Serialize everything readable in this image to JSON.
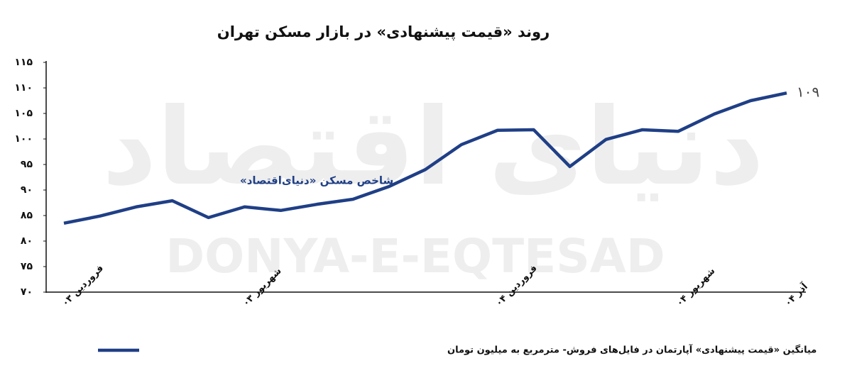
{
  "chart_data": {
    "type": "line",
    "title": "روند «قیمت پیشنهادی» در بازار مسکن تهران",
    "annotation": "شاخص مسکن «دنیای‌اقتصاد»",
    "watermark": "DONYA-E-EQTESAD",
    "watermark_fa": "دنیای اقتصاد",
    "categories": [
      "فروردین ۰۳",
      null,
      null,
      null,
      null,
      "شهریور ۰۳",
      null,
      null,
      null,
      null,
      null,
      null,
      "فروردین ۰۴",
      null,
      null,
      null,
      null,
      "شهریور ۰۴",
      null,
      null,
      "آذر ۰۴"
    ],
    "series": [
      {
        "name": "میانگین «قیمت پیشنهادی» آپارتمان در فایل‌های فروش- مترمربع به میلیون تومان",
        "color": "#1f3f86",
        "values": [
          83.5,
          84.9,
          86.7,
          87.9,
          84.6,
          86.7,
          86,
          87.2,
          88.2,
          90.7,
          94,
          98.9,
          101.7,
          101.8,
          94.6,
          99.9,
          101.8,
          101.5,
          104.9,
          107.5,
          109
        ],
        "value_labels": [
          null,
          null,
          null,
          null,
          null,
          null,
          null,
          null,
          null,
          null,
          null,
          null,
          null,
          null,
          null,
          null,
          null,
          null,
          null,
          null,
          "۱۰۹"
        ]
      }
    ],
    "ylim": [
      70,
      115
    ],
    "yticks": [
      {
        "value": 70,
        "label": "۷۰"
      },
      {
        "value": 75,
        "label": "۷۵"
      },
      {
        "value": 80,
        "label": "۸۰"
      },
      {
        "value": 85,
        "label": "۸۵"
      },
      {
        "value": 90,
        "label": "۹۰"
      },
      {
        "value": 95,
        "label": "۹۵"
      },
      {
        "value": 100,
        "label": "۱۰۰"
      },
      {
        "value": 105,
        "label": "۱۰۵"
      },
      {
        "value": 110,
        "label": "۱۱۰"
      },
      {
        "value": 115,
        "label": "۱۱۵"
      }
    ],
    "grid": false
  }
}
